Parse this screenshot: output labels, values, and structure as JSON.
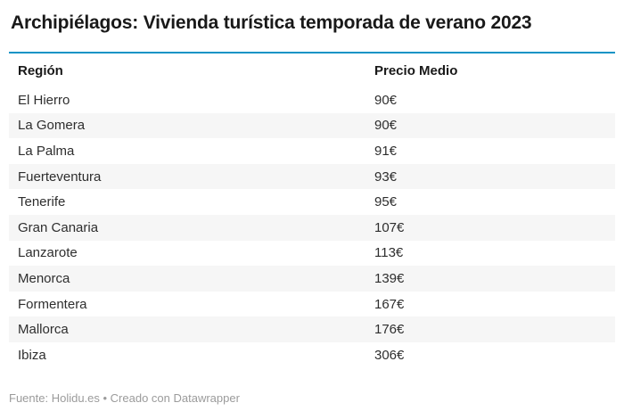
{
  "title": "Archipiélagos: Vivienda turística temporada de verano 2023",
  "colors": {
    "accent": "#0f93c5",
    "stripe": "#f6f6f6",
    "text": "#2e2e2e",
    "heading": "#191919",
    "footer_text": "#9b9b9b"
  },
  "table": {
    "columns": [
      {
        "key": "region",
        "label": "Región"
      },
      {
        "key": "price",
        "label": "Precio Medio"
      }
    ],
    "rows": [
      {
        "region": "El Hierro",
        "price": "90€"
      },
      {
        "region": "La Gomera",
        "price": "90€"
      },
      {
        "region": "La Palma",
        "price": "91€"
      },
      {
        "region": "Fuerteventura",
        "price": "93€"
      },
      {
        "region": "Tenerife",
        "price": "95€"
      },
      {
        "region": "Gran Canaria",
        "price": "107€"
      },
      {
        "region": "Lanzarote",
        "price": "113€"
      },
      {
        "region": "Menorca",
        "price": "139€"
      },
      {
        "region": "Formentera",
        "price": "167€"
      },
      {
        "region": "Mallorca",
        "price": "176€"
      },
      {
        "region": "Ibiza",
        "price": "306€"
      }
    ]
  },
  "footer": {
    "text": "Fuente: Holidu.es • Creado con Datawrapper"
  },
  "chart_data": {
    "type": "table",
    "title": "Archipiélagos: Vivienda turística temporada de verano 2023",
    "columns": [
      "Región",
      "Precio Medio"
    ],
    "categories": [
      "El Hierro",
      "La Gomera",
      "La Palma",
      "Fuerteventura",
      "Tenerife",
      "Gran Canaria",
      "Lanzarote",
      "Menorca",
      "Formentera",
      "Mallorca",
      "Ibiza"
    ],
    "values": [
      90,
      90,
      91,
      93,
      95,
      107,
      113,
      139,
      167,
      176,
      306
    ],
    "unit": "€",
    "source": "Fuente: Holidu.es • Creado con Datawrapper",
    "layout": {
      "zebra_stripes": true,
      "accent_rule_color": "#0f93c5",
      "value_alignment": "left"
    }
  }
}
